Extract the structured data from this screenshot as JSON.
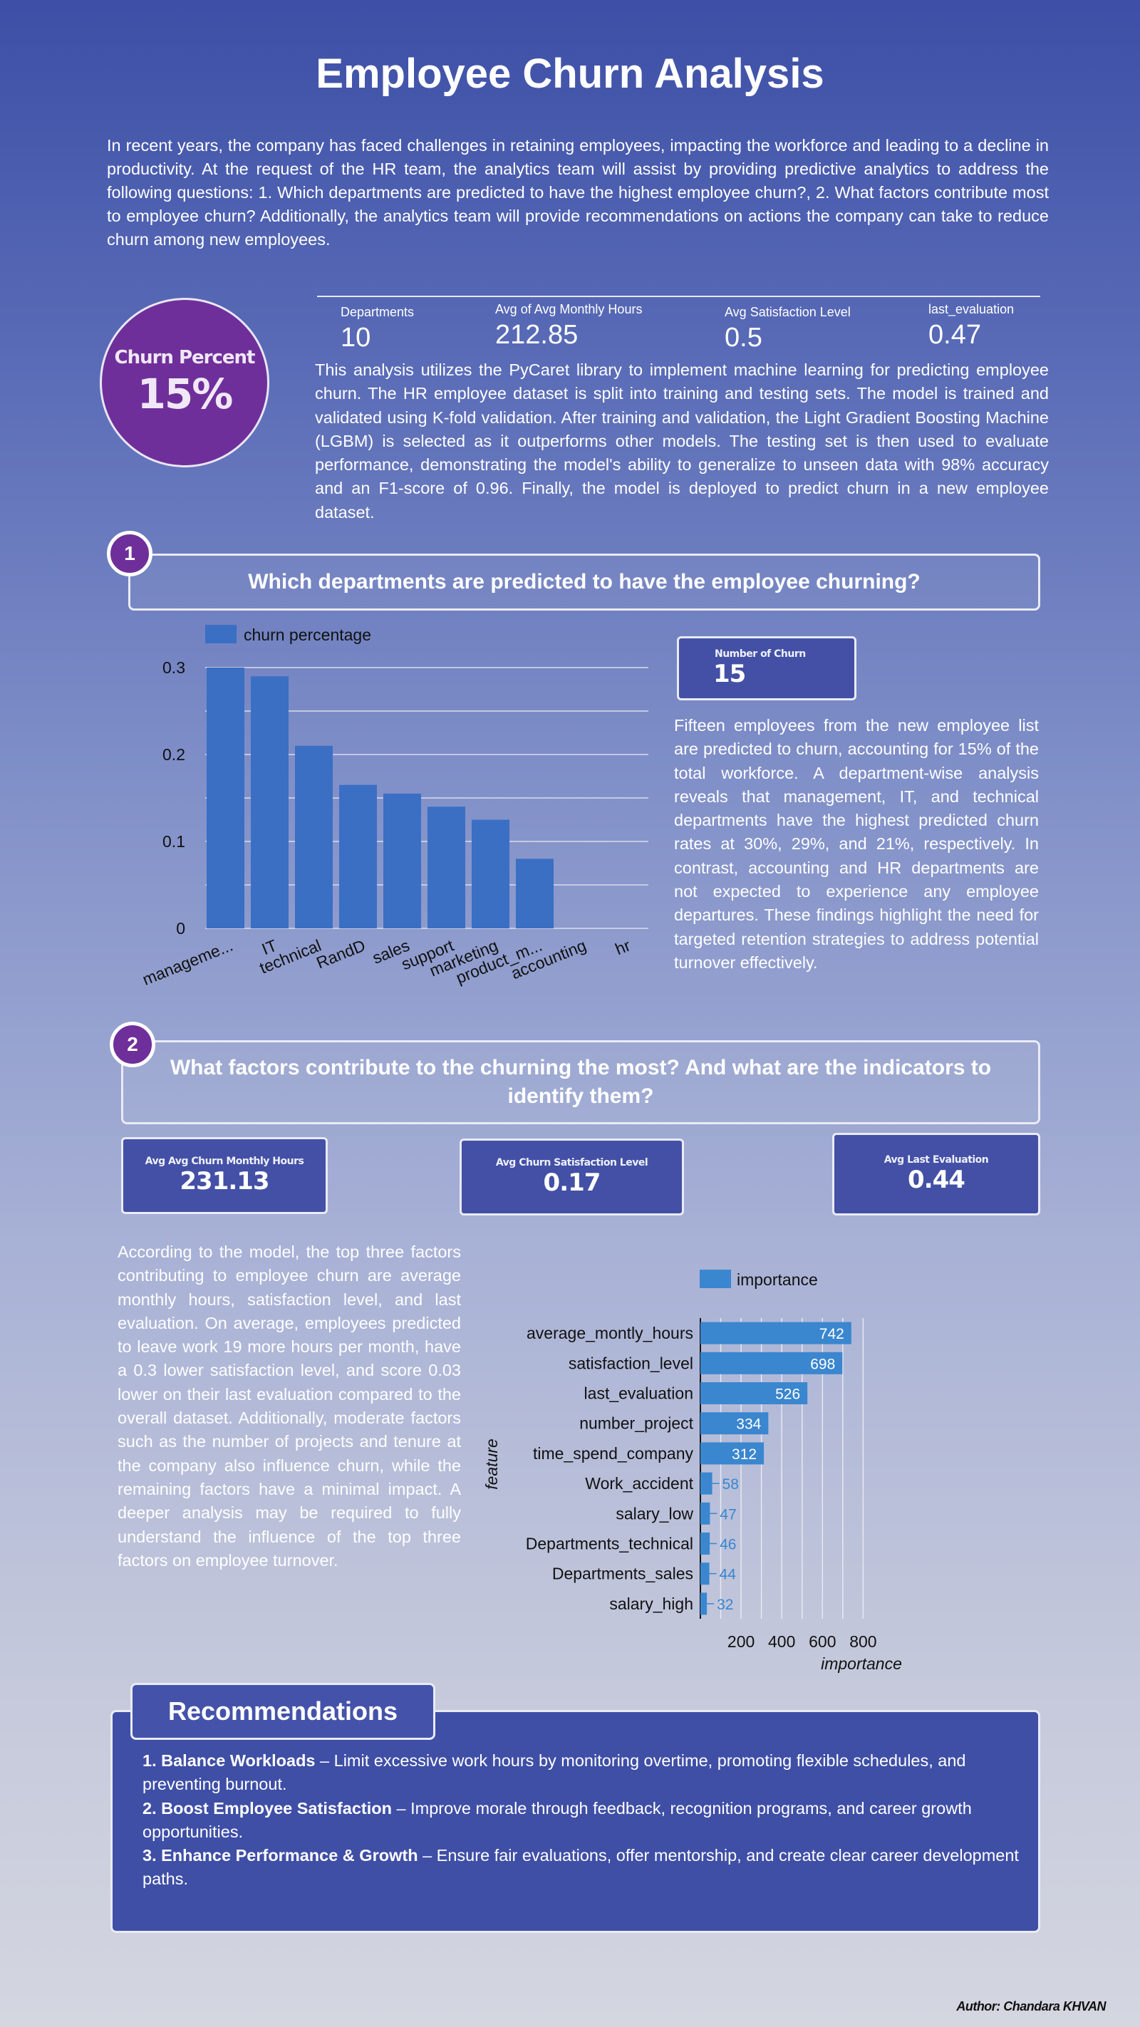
{
  "title": "Employee Churn Analysis",
  "intro": "In recent years, the company has faced challenges in retaining employees, impacting the workforce and leading to a decline in productivity. At the request of the HR team, the analytics team will assist by providing predictive analytics to address the following questions: 1. Which departments are predicted to have the highest employee churn?, 2. What factors contribute most to employee churn? Additionally, the analytics team will provide recommendations on actions the company can take to reduce churn among new employees.",
  "churn": {
    "label": "Churn Percent",
    "value": "15%"
  },
  "kpis": [
    {
      "label": "Departments",
      "value": "10"
    },
    {
      "label": "Avg of Avg Monthly Hours",
      "value": "212.85"
    },
    {
      "label": "Avg Satisfaction Level",
      "value": "0.5"
    },
    {
      "label": "last_evaluation",
      "value": "0.47"
    }
  ],
  "methodology": "This analysis utilizes the PyCaret library to implement machine learning for predicting employee churn. The HR employee dataset is split into training and testing sets. The model is trained and validated using K-fold validation. After training and validation, the Light Gradient Boosting Machine (LGBM) is selected as it outperforms other models. The testing set is then used to evaluate performance, demonstrating the model's ability to generalize to unseen data with 98% accuracy and an F1-score of 0.96. Finally, the model is deployed to predict churn in a new employee dataset.",
  "section1": {
    "number": "1",
    "question": "Which departments are predicted to have the employee churning?",
    "card": {
      "label": "Number of Churn",
      "value": "15"
    },
    "text": "Fifteen employees from the new employee list are predicted to churn, accounting for 15% of the total workforce. A department-wise analysis reveals that management, IT, and technical departments have the highest predicted churn rates at 30%, 29%, and 21%, respectively. In contrast, accounting and HR departments are not expected to experience any employee departures. These findings highlight the need for targeted retention strategies to address potential turnover effectively."
  },
  "section2": {
    "number": "2",
    "question": "What factors contribute to the churning the most? And what are the indicators to identify them?",
    "cards": [
      {
        "label": "Avg Avg Churn Monthly Hours",
        "value": "231.13"
      },
      {
        "label": "Avg Churn Satisfaction Level",
        "value": "0.17"
      },
      {
        "label": "Avg Last Evaluation",
        "value": "0.44"
      }
    ],
    "text": "According to the model, the top three factors contributing to employee churn are average monthly hours, satisfaction level, and last evaluation. On average, employees predicted to leave work 19 more hours per month, have a 0.3 lower satisfaction level, and score 0.03 lower on their last evaluation compared to the overall dataset. Additionally, moderate factors such as the number of projects and tenure at the company also influence churn, while the remaining factors have a minimal impact. A deeper analysis may be required to fully understand the influence of the top three factors on employee turnover."
  },
  "recommendations": {
    "title": "Recommendations",
    "items": [
      {
        "head": "1. Balance Workloads",
        "body": " – Limit excessive work hours by monitoring overtime, promoting flexible schedules, and preventing burnout."
      },
      {
        "head": "2. Boost Employee Satisfaction",
        "body": " – Improve morale through feedback, recognition programs, and career growth opportunities."
      },
      {
        "head": "3. Enhance Performance & Growth",
        "body": " – Ensure fair evaluations, offer mentorship, and create clear career development paths."
      }
    ]
  },
  "author": "Author: Chandara KHVAN",
  "colors": {
    "bar": "#3a6fc4",
    "circle": "#6f2f9a",
    "card": "#4350a5"
  },
  "chart_data": [
    {
      "type": "bar",
      "legend": "churn percentage",
      "categories": [
        "manageme...",
        "IT",
        "technical",
        "RandD",
        "sales",
        "support",
        "marketing",
        "product_m...",
        "accounting",
        "hr"
      ],
      "values": [
        0.3,
        0.29,
        0.21,
        0.165,
        0.155,
        0.14,
        0.125,
        0.08,
        0,
        0
      ],
      "yticks": [
        "0",
        "0.1",
        "0.2",
        "0.3"
      ],
      "ylim": [
        0,
        0.3
      ]
    },
    {
      "type": "bar",
      "orientation": "horizontal",
      "legend": "importance",
      "ylabel": "feature",
      "xlabel": "importance",
      "categories": [
        "average_montly_hours",
        "satisfaction_level",
        "last_evaluation",
        "number_project",
        "time_spend_company",
        "Work_accident",
        "salary_low",
        "Departments_technical",
        "Departments_sales",
        "salary_high"
      ],
      "values": [
        742,
        698,
        526,
        334,
        312,
        58,
        47,
        46,
        44,
        32
      ],
      "xticks": [
        "200",
        "400",
        "600",
        "800"
      ],
      "xlim": [
        0,
        800
      ]
    }
  ]
}
